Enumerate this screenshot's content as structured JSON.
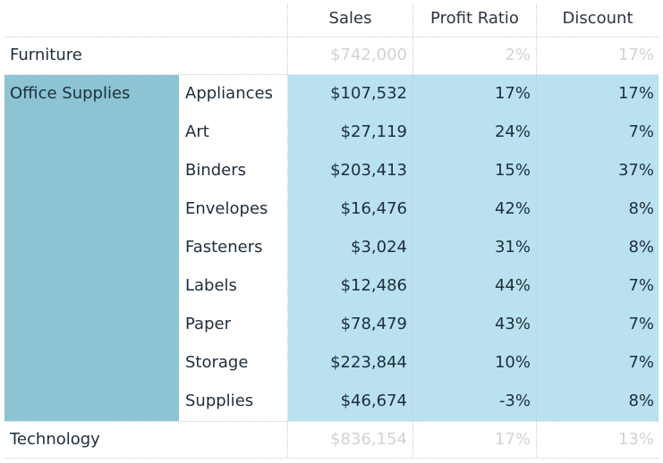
{
  "chart_data": {
    "type": "table",
    "columns": [
      "Sales",
      "Profit Ratio",
      "Discount"
    ],
    "rows": [
      {
        "category": "Furniture",
        "subcategory": "",
        "sales": "$742,000",
        "profit_ratio": "2%",
        "discount": "17%",
        "faded": true
      },
      {
        "category": "Office Supplies",
        "subcategory": "Appliances",
        "sales": "$107,532",
        "profit_ratio": "17%",
        "discount": "17%",
        "faded": false
      },
      {
        "category": "",
        "subcategory": "Art",
        "sales": "$27,119",
        "profit_ratio": "24%",
        "discount": "7%",
        "faded": false
      },
      {
        "category": "",
        "subcategory": "Binders",
        "sales": "$203,413",
        "profit_ratio": "15%",
        "discount": "37%",
        "faded": false
      },
      {
        "category": "",
        "subcategory": "Envelopes",
        "sales": "$16,476",
        "profit_ratio": "42%",
        "discount": "8%",
        "faded": false
      },
      {
        "category": "",
        "subcategory": "Fasteners",
        "sales": "$3,024",
        "profit_ratio": "31%",
        "discount": "8%",
        "faded": false
      },
      {
        "category": "",
        "subcategory": "Labels",
        "sales": "$12,486",
        "profit_ratio": "44%",
        "discount": "7%",
        "faded": false
      },
      {
        "category": "",
        "subcategory": "Paper",
        "sales": "$78,479",
        "profit_ratio": "43%",
        "discount": "7%",
        "faded": false
      },
      {
        "category": "",
        "subcategory": "Storage",
        "sales": "$223,844",
        "profit_ratio": "10%",
        "discount": "7%",
        "faded": false
      },
      {
        "category": "",
        "subcategory": "Supplies",
        "sales": "$46,674",
        "profit_ratio": "-3%",
        "discount": "8%",
        "faded": false
      },
      {
        "category": "Technology",
        "subcategory": "",
        "sales": "$836,154",
        "profit_ratio": "17%",
        "discount": "13%",
        "faded": true
      }
    ],
    "highlight": {
      "category": "Office Supplies",
      "category_color": "#8cc4d3",
      "row_color": "#b9e1ef"
    },
    "faded_text_color": "#d0d3d6"
  }
}
